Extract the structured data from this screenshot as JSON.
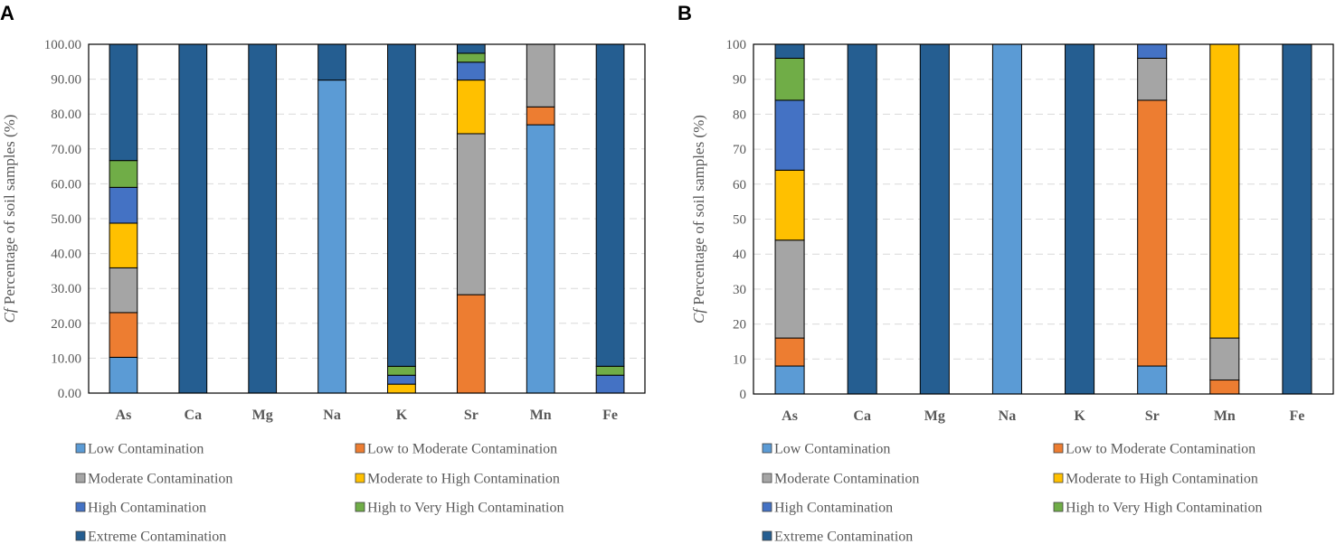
{
  "colors": {
    "Low Contamination": "#5b9bd5",
    "Low to Moderate Contamination": "#ed7d31",
    "Moderate Contamination": "#a5a5a5",
    "Moderate to High Contamination": "#ffc000",
    "High Contamination": "#4472c4",
    "High to Very High Contamination": "#70ad47",
    "Extreme Contamination": "#255e91"
  },
  "y_axis_label_italic": "Cf",
  "y_axis_label_rest": " Percentage of soil samples (%)",
  "legend_labels": [
    "Low Contamination",
    "Low to Moderate Contamination",
    "Moderate Contamination",
    "Moderate to High Contamination",
    "High Contamination",
    "High to Very High Contamination",
    "Extreme Contamination"
  ],
  "chart_data": [
    {
      "panel": "A",
      "type": "bar",
      "stacked": true,
      "categories": [
        "As",
        "Ca",
        "Mg",
        "Na",
        "K",
        "Sr",
        "Mn",
        "Fe"
      ],
      "ylabel": "Cf Percentage of soil samples (%)",
      "ylim": [
        0,
        100
      ],
      "yticks": [
        "0.00",
        "10.00",
        "20.00",
        "30.00",
        "40.00",
        "50.00",
        "60.00",
        "70.00",
        "80.00",
        "90.00",
        "100.00"
      ],
      "grid": true,
      "series": [
        {
          "name": "Low Contamination",
          "values": [
            10.26,
            0,
            0,
            89.74,
            0,
            0,
            76.92,
            0
          ]
        },
        {
          "name": "Low to Moderate Contamination",
          "values": [
            12.82,
            0,
            0,
            0,
            0,
            28.21,
            5.13,
            0
          ]
        },
        {
          "name": "Moderate Contamination",
          "values": [
            12.82,
            0,
            0,
            0,
            0,
            46.15,
            17.95,
            0
          ]
        },
        {
          "name": "Moderate to High Contamination",
          "values": [
            12.82,
            0,
            0,
            0,
            2.56,
            15.38,
            0,
            0
          ]
        },
        {
          "name": "High Contamination",
          "values": [
            10.26,
            0,
            0,
            0,
            2.56,
            5.13,
            0,
            5.13
          ]
        },
        {
          "name": "High to Very High Contamination",
          "values": [
            7.69,
            0,
            0,
            0,
            2.56,
            2.56,
            0,
            2.56
          ]
        },
        {
          "name": "Extreme Contamination",
          "values": [
            33.33,
            100,
            100,
            10.26,
            92.31,
            2.56,
            0,
            92.31
          ]
        }
      ]
    },
    {
      "panel": "B",
      "type": "bar",
      "stacked": true,
      "categories": [
        "As",
        "Ca",
        "Mg",
        "Na",
        "K",
        "Sr",
        "Mn",
        "Fe"
      ],
      "ylabel": "Cf Percentage of soil samples (%)",
      "ylim": [
        0,
        100
      ],
      "yticks": [
        "0",
        "10",
        "20",
        "30",
        "40",
        "50",
        "60",
        "70",
        "80",
        "90",
        "100"
      ],
      "grid": true,
      "series": [
        {
          "name": "Low Contamination",
          "values": [
            8,
            0,
            0,
            100,
            0,
            8,
            0,
            0
          ]
        },
        {
          "name": "Low to Moderate Contamination",
          "values": [
            8,
            0,
            0,
            0,
            0,
            76,
            4,
            0
          ]
        },
        {
          "name": "Moderate Contamination",
          "values": [
            28,
            0,
            0,
            0,
            0,
            12,
            12,
            0
          ]
        },
        {
          "name": "Moderate to High Contamination",
          "values": [
            20,
            0,
            0,
            0,
            0,
            0,
            84,
            0
          ]
        },
        {
          "name": "High Contamination",
          "values": [
            20,
            0,
            0,
            0,
            0,
            4,
            0,
            0
          ]
        },
        {
          "name": "High to Very High Contamination",
          "values": [
            12,
            0,
            0,
            0,
            0,
            0,
            0,
            0
          ]
        },
        {
          "name": "Extreme Contamination",
          "values": [
            4,
            100,
            100,
            0,
            100,
            0,
            0,
            100
          ]
        }
      ]
    }
  ]
}
